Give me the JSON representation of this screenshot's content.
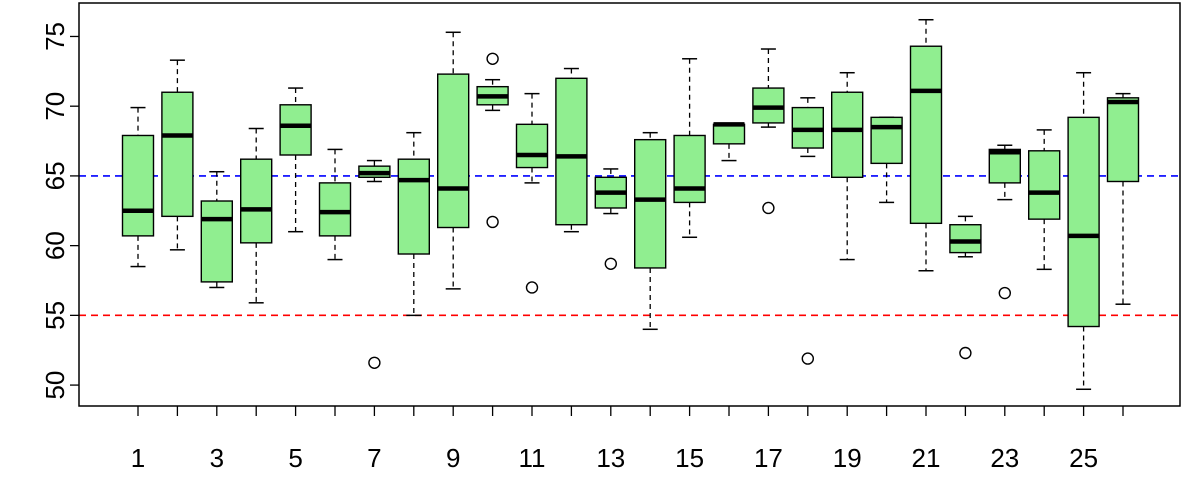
{
  "chart_data": {
    "type": "boxplot",
    "title": "",
    "xlabel": "",
    "ylabel": "",
    "categories": [
      "1",
      "2",
      "3",
      "4",
      "5",
      "6",
      "7",
      "8",
      "9",
      "10",
      "11",
      "12",
      "13",
      "14",
      "15",
      "16",
      "17",
      "18",
      "19",
      "20",
      "21",
      "22",
      "23",
      "24",
      "25",
      "26"
    ],
    "x_tick_labels": [
      "1",
      "3",
      "5",
      "7",
      "9",
      "11",
      "13",
      "15",
      "17",
      "19",
      "21",
      "23",
      "25"
    ],
    "y_ticks": [
      50,
      55,
      60,
      65,
      70,
      75
    ],
    "y_tick_labels": [
      "50",
      "55",
      "60",
      "65",
      "70",
      "75"
    ],
    "ylim": [
      48.5,
      77.4
    ],
    "grid": false,
    "box_color": "#90EE90",
    "reference_lines": [
      {
        "value": 65,
        "color": "#0000FF",
        "style": "dashed"
      },
      {
        "value": 55,
        "color": "#FF0000",
        "style": "dashed"
      }
    ],
    "boxes": [
      {
        "min": 58.5,
        "q1": 60.7,
        "median": 62.5,
        "q3": 67.9,
        "max": 69.9,
        "outliers": []
      },
      {
        "min": 59.7,
        "q1": 62.1,
        "median": 67.9,
        "q3": 71.0,
        "max": 73.3,
        "outliers": []
      },
      {
        "min": 57.0,
        "q1": 57.4,
        "median": 61.9,
        "q3": 63.2,
        "max": 65.3,
        "outliers": []
      },
      {
        "min": 55.9,
        "q1": 60.2,
        "median": 62.6,
        "q3": 66.2,
        "max": 68.4,
        "outliers": []
      },
      {
        "min": 61.0,
        "q1": 66.5,
        "median": 68.6,
        "q3": 70.1,
        "max": 71.3,
        "outliers": []
      },
      {
        "min": 59.0,
        "q1": 60.7,
        "median": 62.4,
        "q3": 64.5,
        "max": 66.9,
        "outliers": []
      },
      {
        "min": 64.6,
        "q1": 64.9,
        "median": 65.2,
        "q3": 65.7,
        "max": 66.1,
        "outliers": [
          51.6
        ]
      },
      {
        "min": 55.0,
        "q1": 59.4,
        "median": 64.7,
        "q3": 66.2,
        "max": 68.1,
        "outliers": []
      },
      {
        "min": 56.9,
        "q1": 61.3,
        "median": 64.1,
        "q3": 72.3,
        "max": 75.3,
        "outliers": []
      },
      {
        "min": 69.7,
        "q1": 70.1,
        "median": 70.7,
        "q3": 71.4,
        "max": 71.9,
        "outliers": [
          73.4,
          61.7
        ]
      },
      {
        "min": 64.5,
        "q1": 65.6,
        "median": 66.5,
        "q3": 68.7,
        "max": 70.9,
        "outliers": [
          57.0
        ]
      },
      {
        "min": 61.0,
        "q1": 61.5,
        "median": 66.4,
        "q3": 72.0,
        "max": 72.7,
        "outliers": []
      },
      {
        "min": 62.3,
        "q1": 62.7,
        "median": 63.8,
        "q3": 64.9,
        "max": 65.5,
        "outliers": [
          58.7
        ]
      },
      {
        "min": 54.0,
        "q1": 58.4,
        "median": 63.3,
        "q3": 67.6,
        "max": 68.1,
        "outliers": []
      },
      {
        "min": 60.6,
        "q1": 63.1,
        "median": 64.1,
        "q3": 67.9,
        "max": 73.4,
        "outliers": []
      },
      {
        "min": 66.1,
        "q1": 67.3,
        "median": 68.7,
        "q3": 68.7,
        "max": 68.7,
        "outliers": []
      },
      {
        "min": 68.5,
        "q1": 68.8,
        "median": 69.9,
        "q3": 71.3,
        "max": 74.1,
        "outliers": [
          62.7
        ]
      },
      {
        "min": 66.4,
        "q1": 67.0,
        "median": 68.3,
        "q3": 69.9,
        "max": 70.6,
        "outliers": [
          51.9
        ]
      },
      {
        "min": 59.0,
        "q1": 64.9,
        "median": 68.3,
        "q3": 71.0,
        "max": 72.4,
        "outliers": []
      },
      {
        "min": 63.1,
        "q1": 65.9,
        "median": 68.5,
        "q3": 69.2,
        "max": 69.2,
        "outliers": []
      },
      {
        "min": 58.2,
        "q1": 61.6,
        "median": 71.1,
        "q3": 74.3,
        "max": 76.2,
        "outliers": []
      },
      {
        "min": 59.2,
        "q1": 59.5,
        "median": 60.3,
        "q3": 61.5,
        "max": 62.1,
        "outliers": [
          52.3
        ]
      },
      {
        "min": 63.3,
        "q1": 64.5,
        "median": 66.7,
        "q3": 66.9,
        "max": 67.2,
        "outliers": [
          56.6
        ]
      },
      {
        "min": 58.3,
        "q1": 61.9,
        "median": 63.8,
        "q3": 66.8,
        "max": 68.3,
        "outliers": []
      },
      {
        "min": 49.7,
        "q1": 54.2,
        "median": 60.7,
        "q3": 69.2,
        "max": 72.4,
        "outliers": []
      },
      {
        "min": 55.8,
        "q1": 64.6,
        "median": 70.3,
        "q3": 70.6,
        "max": 70.9,
        "outliers": []
      }
    ]
  }
}
